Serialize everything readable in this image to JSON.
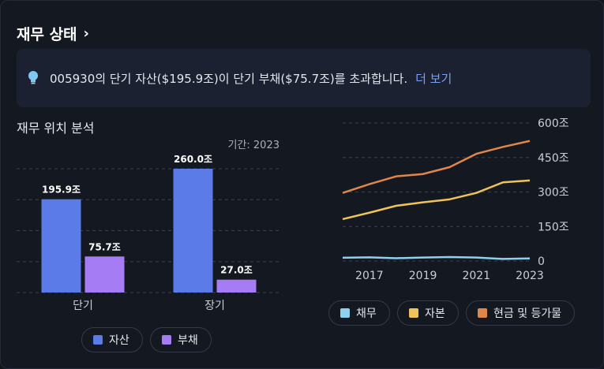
{
  "header": {
    "title": "재무 상태",
    "chevron_icon": "chevron-right-icon"
  },
  "insight": {
    "icon": "lightbulb-icon",
    "text": "005930의 단기 자산($195.9조)이 단기 부채($75.7조)를 초과합니다.",
    "more_label": "더 보기"
  },
  "position": {
    "title": "재무 위치 분석",
    "period": "기간: 2023"
  },
  "chart_data": [
    {
      "type": "bar",
      "categories": [
        "단기",
        "장기"
      ],
      "series": [
        {
          "name": "자산",
          "values": [
            195.9,
            260.0
          ],
          "labels": [
            "195.9조",
            "260.0조"
          ],
          "color": "#5b7be8"
        },
        {
          "name": "부채",
          "values": [
            75.7,
            27.0
          ],
          "labels": [
            "75.7조",
            "27.0조"
          ],
          "color": "#a57cf3"
        }
      ],
      "ylim": [
        0,
        260
      ],
      "grid": true
    },
    {
      "type": "line",
      "x": [
        2016,
        2017,
        2018,
        2019,
        2020,
        2021,
        2022,
        2023
      ],
      "x_ticks": [
        "2017",
        "2019",
        "2021",
        "2023"
      ],
      "y_ticks": [
        "0",
        "150조",
        "300조",
        "450조",
        "600조"
      ],
      "ylim": [
        0,
        600
      ],
      "series": [
        {
          "name": "채무",
          "color": "#8fd0ef",
          "values": [
            14,
            16,
            12,
            15,
            17,
            15,
            9,
            11
          ]
        },
        {
          "name": "자본",
          "color": "#efc25a",
          "values": [
            182,
            210,
            240,
            255,
            268,
            296,
            342,
            350
          ]
        },
        {
          "name": "현금 및 등가물",
          "color": "#e0864a",
          "values": [
            296,
            334,
            368,
            378,
            408,
            466,
            496,
            522
          ]
        }
      ],
      "grid": true
    }
  ],
  "legend_left": [
    "자산",
    "부채"
  ],
  "legend_right": [
    "채무",
    "자본",
    "현금 및 등가물"
  ],
  "colors": {
    "asset": "#5b7be8",
    "liability": "#a57cf3",
    "debt": "#8fd0ef",
    "equity": "#efc25a",
    "cash": "#e0864a",
    "link": "#7aa0f5"
  }
}
